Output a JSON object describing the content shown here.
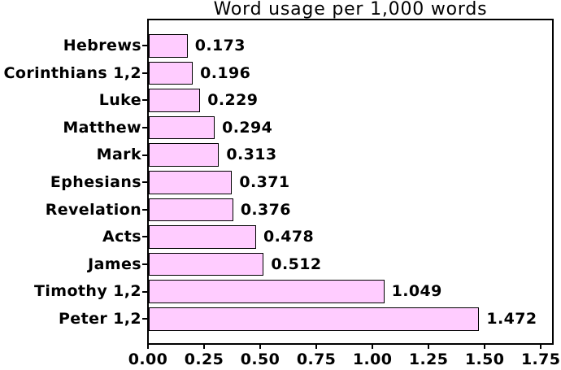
{
  "chart_data": {
    "type": "bar",
    "orientation": "horizontal",
    "title": "Word usage per 1,000 words",
    "categories": [
      "Hebrews",
      "Corinthians 1,2",
      "Luke",
      "Matthew",
      "Mark",
      "Ephesians",
      "Revelation",
      "Acts",
      "James",
      "Timothy 1,2",
      "Peter 1,2"
    ],
    "values": [
      0.173,
      0.196,
      0.229,
      0.294,
      0.313,
      0.371,
      0.376,
      0.478,
      0.512,
      1.049,
      1.472
    ],
    "value_labels": [
      "0.173",
      "0.196",
      "0.229",
      "0.294",
      "0.313",
      "0.371",
      "0.376",
      "0.478",
      "0.512",
      "1.049",
      "1.472"
    ],
    "xlabel": "",
    "ylabel": "",
    "xlim": [
      0,
      1.8
    ],
    "xtick_values": [
      0,
      0.25,
      0.5,
      0.75,
      1.0,
      1.25,
      1.5,
      1.75
    ],
    "xtick_labels": [
      "0.00",
      "0.25",
      "0.50",
      "0.75",
      "1.00",
      "1.25",
      "1.50",
      "1.75"
    ],
    "grid": false,
    "legend_position": "none",
    "bar_color": "#FFCCFF",
    "bar_edge_color": "#000000",
    "text_color": "#000000",
    "background_color": "#FFFFFF"
  }
}
